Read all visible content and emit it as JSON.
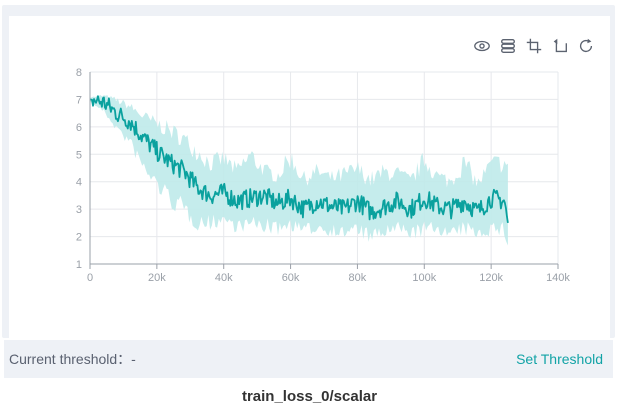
{
  "threshold": {
    "label": "Current threshold：-",
    "set_label": "Set Threshold"
  },
  "caption": "train_loss_0/scalar",
  "toolbar": {
    "icons": [
      "eye-icon",
      "layers-icon",
      "crop-icon",
      "restore-icon",
      "refresh-icon"
    ]
  },
  "colors": {
    "line": "#0aa19e",
    "band": "#bfeaea",
    "grid": "#e6e8ec",
    "axis": "#9aa0a8",
    "link": "#12a3a6"
  },
  "chart_data": {
    "type": "line",
    "title": "",
    "xlabel": "",
    "ylabel": "",
    "xlim": [
      0,
      140000
    ],
    "ylim": [
      1,
      8
    ],
    "xticks": [
      0,
      20000,
      40000,
      60000,
      80000,
      100000,
      120000,
      140000
    ],
    "xtick_labels": [
      "0",
      "20k",
      "40k",
      "60k",
      "80k",
      "100k",
      "120k",
      "140k"
    ],
    "yticks": [
      1,
      2,
      3,
      4,
      5,
      6,
      7,
      8
    ],
    "ytick_labels": [
      "1",
      "2",
      "3",
      "4",
      "5",
      "6",
      "7",
      "8"
    ],
    "grid": true,
    "series": [
      {
        "role": "smoothed",
        "x": [
          0,
          4000,
          8000,
          12000,
          16000,
          20000,
          24000,
          28000,
          32000,
          36000,
          40000,
          44000,
          48000,
          52000,
          56000,
          60000,
          64000,
          68000,
          72000,
          76000,
          80000,
          84000,
          88000,
          92000,
          96000,
          100000,
          104000,
          108000,
          112000,
          116000,
          120000,
          124000,
          125000
        ],
        "y": [
          7.0,
          6.9,
          6.5,
          6.2,
          5.6,
          5.1,
          4.7,
          4.4,
          3.8,
          3.5,
          3.6,
          3.3,
          3.4,
          3.5,
          3.2,
          3.4,
          3.0,
          3.3,
          3.1,
          3.0,
          3.3,
          2.9,
          3.1,
          3.3,
          3.0,
          3.4,
          3.1,
          3.0,
          3.3,
          2.9,
          3.4,
          3.3,
          2.5
        ]
      },
      {
        "role": "raw",
        "x": [
          0,
          4000,
          8000,
          12000,
          16000,
          20000,
          24000,
          28000,
          32000,
          36000,
          40000,
          44000,
          48000,
          52000,
          56000,
          60000,
          64000,
          68000,
          72000,
          76000,
          80000,
          84000,
          88000,
          92000,
          96000,
          100000,
          104000,
          108000,
          112000,
          116000,
          120000,
          124000,
          125000
        ],
        "y_min": [
          6.9,
          6.5,
          5.8,
          5.2,
          4.2,
          3.6,
          3.0,
          2.6,
          2.2,
          2.2,
          2.4,
          2.1,
          2.2,
          2.1,
          2.0,
          2.2,
          2.0,
          2.1,
          2.0,
          1.9,
          2.0,
          1.7,
          1.9,
          2.0,
          1.9,
          1.9,
          2.1,
          1.8,
          2.0,
          1.9,
          2.0,
          1.9,
          1.6
        ],
        "y_max": [
          7.1,
          7.2,
          7.1,
          6.9,
          6.6,
          6.4,
          6.2,
          5.9,
          5.5,
          5.0,
          5.2,
          4.7,
          5.4,
          4.7,
          4.5,
          5.3,
          4.4,
          4.7,
          4.4,
          4.6,
          4.8,
          4.4,
          4.7,
          4.6,
          4.3,
          5.2,
          4.5,
          4.3,
          5.1,
          4.2,
          5.0,
          5.1,
          4.8
        ]
      }
    ]
  }
}
